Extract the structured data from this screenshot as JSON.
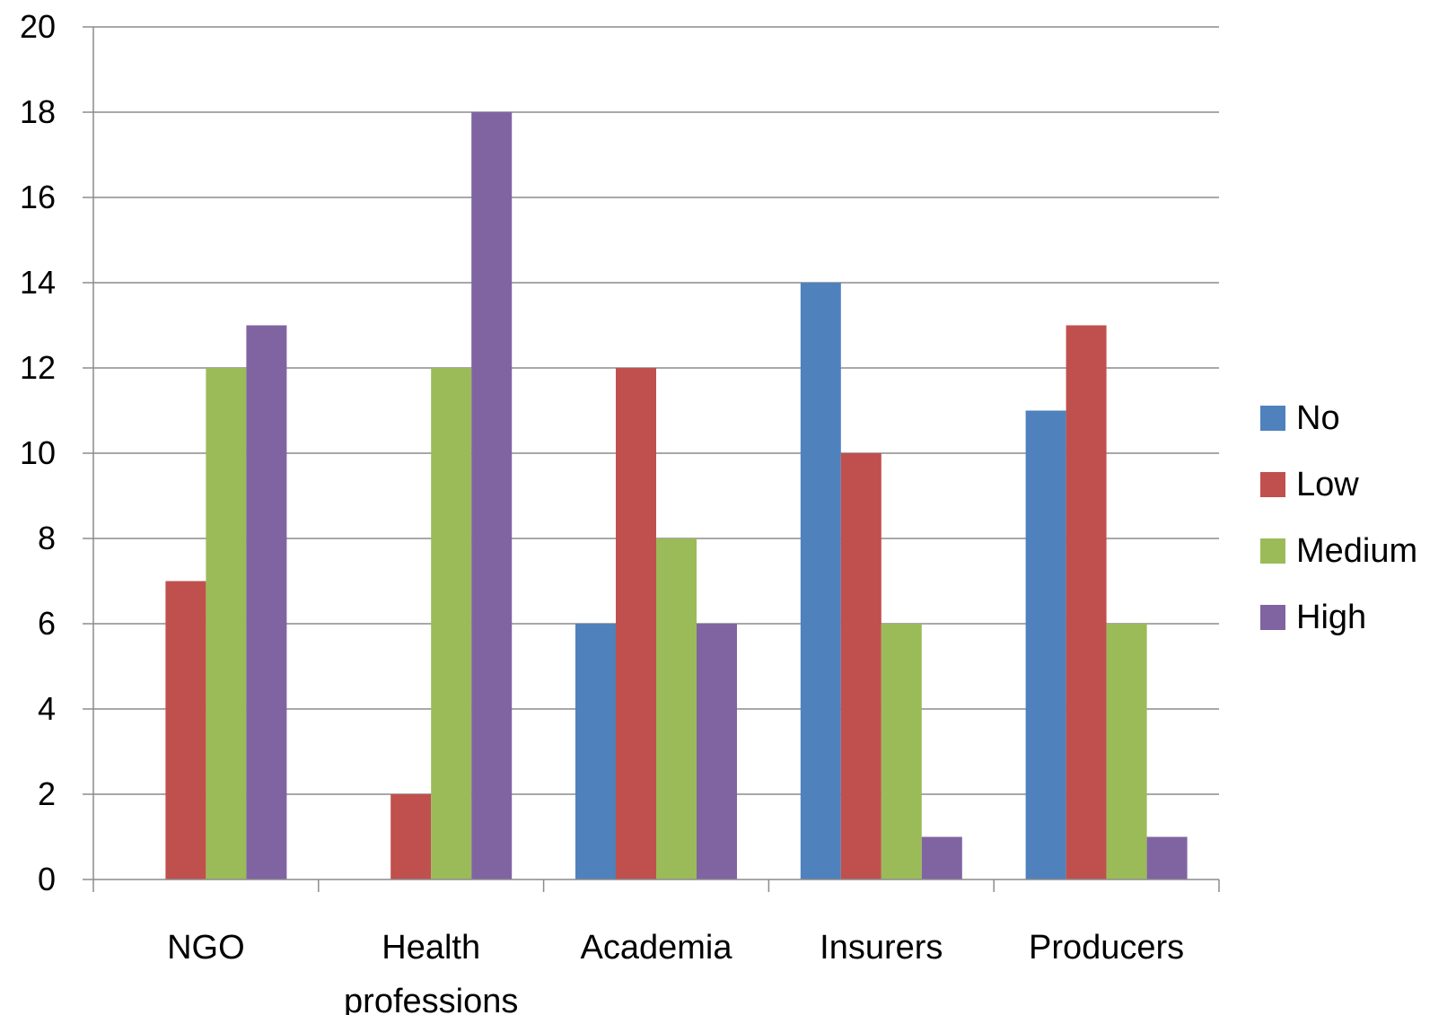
{
  "chart_data": {
    "type": "bar",
    "title": "",
    "xlabel": "",
    "ylabel": "",
    "categories": [
      "NGO",
      "Health professions",
      "Academia",
      "Insurers",
      "Producers"
    ],
    "category_lines": [
      [
        "NGO"
      ],
      [
        "Health",
        "professions"
      ],
      [
        "Academia"
      ],
      [
        "Insurers"
      ],
      [
        "Producers"
      ]
    ],
    "series": [
      {
        "name": "No",
        "color": "#4F81BD",
        "values": [
          0,
          0,
          6,
          14,
          11
        ]
      },
      {
        "name": "Low",
        "color": "#C0504D",
        "values": [
          7,
          2,
          12,
          10,
          13
        ]
      },
      {
        "name": "Medium",
        "color": "#9BBB59",
        "values": [
          12,
          12,
          8,
          6,
          6
        ]
      },
      {
        "name": "High",
        "color": "#8064A2",
        "values": [
          13,
          18,
          6,
          1,
          1
        ]
      }
    ],
    "ylim": [
      0,
      20
    ],
    "yticks": [
      0,
      2,
      4,
      6,
      8,
      10,
      12,
      14,
      16,
      18,
      20
    ],
    "grid": true,
    "legend": "right"
  }
}
